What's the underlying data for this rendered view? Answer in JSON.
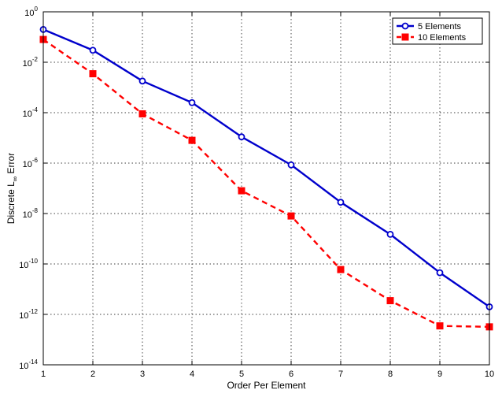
{
  "chart_data": {
    "type": "line",
    "xlabel": "Order Per Element",
    "ylabel": {
      "main": "Discrete L",
      "subscript": "∞",
      "suffix": " Error"
    },
    "xlim": [
      1,
      10
    ],
    "ylim": [
      1e-14,
      1
    ],
    "yscale": "log",
    "grid": true,
    "legend_position": "top-right",
    "xticks": [
      1,
      2,
      3,
      4,
      5,
      6,
      7,
      8,
      9,
      10
    ],
    "yticks": [
      {
        "value": 1,
        "base": "10",
        "exp": "0"
      },
      {
        "value": 0.01,
        "base": "10",
        "exp": "-2"
      },
      {
        "value": 0.0001,
        "base": "10",
        "exp": "-4"
      },
      {
        "value": 1e-06,
        "base": "10",
        "exp": "-6"
      },
      {
        "value": 1e-08,
        "base": "10",
        "exp": "-8"
      },
      {
        "value": 1e-10,
        "base": "10",
        "exp": "-10"
      },
      {
        "value": 1e-12,
        "base": "10",
        "exp": "-12"
      },
      {
        "value": 1e-14,
        "base": "10",
        "exp": "-14"
      }
    ],
    "x": [
      1,
      2,
      3,
      4,
      5,
      6,
      7,
      8,
      9,
      10
    ],
    "series": [
      {
        "name": "5 Elements",
        "color": "#0000cc",
        "line": "solid",
        "marker": "circle",
        "values": [
          0.2,
          0.03,
          0.0018,
          0.00025,
          1.1e-05,
          8.5e-07,
          2.8e-08,
          1.5e-09,
          4.5e-11,
          2e-12
        ]
      },
      {
        "name": "10 Elements",
        "color": "#ff0000",
        "line": "dashed",
        "marker": "square",
        "values": [
          0.08,
          0.0035,
          9e-05,
          8e-06,
          8e-08,
          8e-09,
          6e-11,
          3.5e-12,
          3.5e-13,
          3.2e-13
        ]
      }
    ]
  }
}
